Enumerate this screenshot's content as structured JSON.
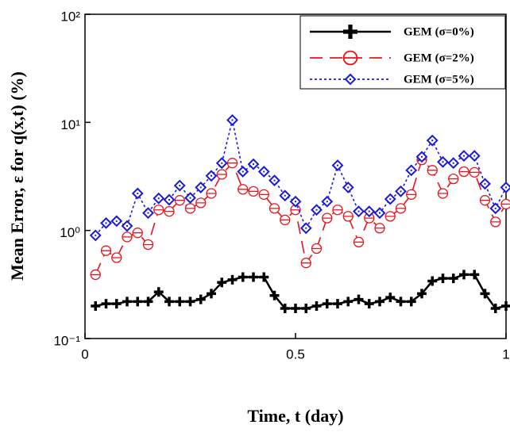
{
  "chart_data": {
    "type": "line",
    "xlabel": "Time, t (day)",
    "ylabel": "Mean Error, ε for q(x,t) (%)",
    "x": [
      0.025,
      0.05,
      0.075,
      0.1,
      0.125,
      0.15,
      0.175,
      0.2,
      0.225,
      0.25,
      0.275,
      0.3,
      0.325,
      0.35,
      0.375,
      0.4,
      0.425,
      0.45,
      0.475,
      0.5,
      0.525,
      0.55,
      0.575,
      0.6,
      0.625,
      0.65,
      0.675,
      0.7,
      0.725,
      0.75,
      0.775,
      0.8,
      0.825,
      0.85,
      0.875,
      0.9,
      0.925,
      0.95,
      0.975,
      1.0
    ],
    "series": [
      {
        "name": "GEM (σ=0%)",
        "color": "#000000",
        "marker": "plus",
        "dash": "solid",
        "values": [
          0.2,
          0.21,
          0.21,
          0.22,
          0.22,
          0.22,
          0.27,
          0.22,
          0.22,
          0.22,
          0.23,
          0.26,
          0.33,
          0.35,
          0.37,
          0.37,
          0.37,
          0.25,
          0.19,
          0.19,
          0.19,
          0.2,
          0.21,
          0.21,
          0.22,
          0.23,
          0.21,
          0.22,
          0.24,
          0.22,
          0.22,
          0.26,
          0.34,
          0.36,
          0.36,
          0.39,
          0.39,
          0.26,
          0.19,
          0.2
        ]
      },
      {
        "name": "GEM (σ=2%)",
        "color": "#e8141c",
        "marker": "circle",
        "dash": "long",
        "values": [
          0.39,
          0.65,
          0.56,
          0.87,
          0.95,
          0.74,
          1.55,
          1.5,
          1.9,
          1.6,
          1.8,
          2.2,
          3.3,
          4.2,
          2.4,
          2.3,
          2.15,
          1.6,
          1.25,
          1.55,
          0.5,
          0.68,
          1.3,
          1.55,
          1.35,
          0.78,
          1.3,
          1.05,
          1.35,
          1.6,
          2.15,
          4.5,
          3.6,
          2.2,
          3.0,
          3.5,
          3.45,
          1.9,
          1.2,
          1.75
        ]
      },
      {
        "name": "GEM (σ=5%)",
        "color": "#1a1adc",
        "marker": "diamond",
        "dash": "dot",
        "values": [
          0.9,
          1.17,
          1.22,
          1.1,
          2.2,
          1.45,
          1.98,
          1.92,
          2.6,
          2.0,
          2.5,
          3.2,
          4.2,
          10.5,
          3.5,
          4.1,
          3.5,
          2.9,
          2.1,
          1.85,
          1.05,
          1.55,
          1.85,
          4.0,
          2.5,
          1.5,
          1.5,
          1.45,
          1.95,
          2.3,
          3.6,
          4.8,
          6.8,
          4.3,
          4.2,
          4.9,
          4.9,
          2.7,
          1.6,
          2.5
        ]
      }
    ],
    "xlim": [
      0,
      1
    ],
    "xticks": [
      0,
      0.5,
      1
    ],
    "ylim": [
      0.1,
      100
    ],
    "ylog": true,
    "yticks": [
      {
        "value": 0.1,
        "label": "10⁻¹"
      },
      {
        "value": 1,
        "label": "10⁰"
      },
      {
        "value": 10,
        "label": "10¹"
      },
      {
        "value": 100,
        "label": "10²"
      }
    ],
    "legend": "upper right"
  }
}
